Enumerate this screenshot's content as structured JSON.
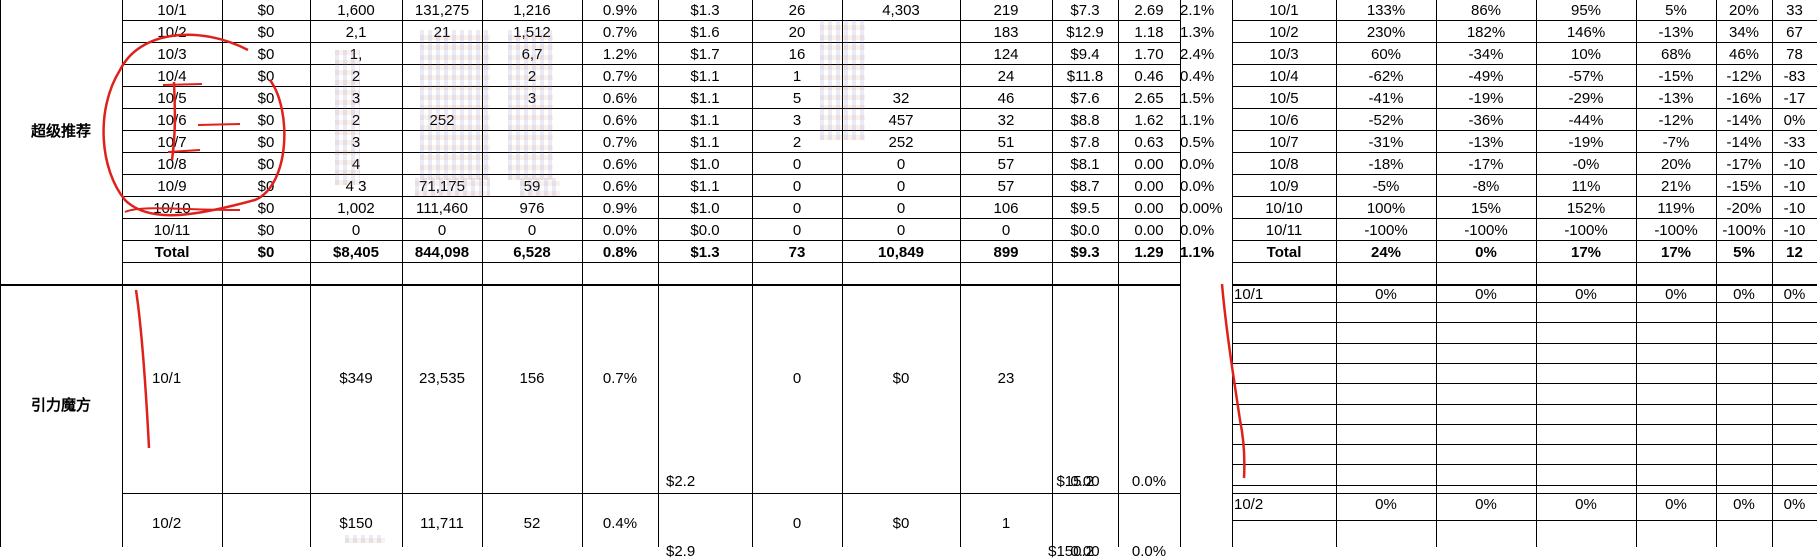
{
  "left_table": {
    "group_a": {
      "label": "超级推荐",
      "rows": [
        [
          "10/1",
          "$0",
          "1,600",
          "131,275",
          "1,216",
          "0.9%",
          "$1.3",
          "26",
          "4,303",
          "219",
          "$7.3",
          "2.69",
          "2.1%"
        ],
        [
          "10/2",
          "$0",
          "2,1",
          "21",
          "1,512",
          "0.7%",
          "$1.6",
          "20",
          "",
          "183",
          "$12.9",
          "1.18",
          "1.3%"
        ],
        [
          "10/3",
          "$0",
          "1,",
          "",
          "6,7",
          "1.2%",
          "$1.7",
          "16",
          "",
          "124",
          "$9.4",
          "1.70",
          "2.4%"
        ],
        [
          "10/4",
          "$0",
          "2",
          "",
          "2",
          "0.7%",
          "$1.1",
          "1",
          "",
          "24",
          "$11.8",
          "0.46",
          "0.4%"
        ],
        [
          "10/5",
          "$0",
          "3",
          "",
          "3",
          "0.6%",
          "$1.1",
          "5",
          "32",
          "46",
          "$7.6",
          "2.65",
          "1.5%"
        ],
        [
          "10/6",
          "$0",
          "2",
          "252",
          "",
          "0.6%",
          "$1.1",
          "3",
          "457",
          "32",
          "$8.8",
          "1.62",
          "1.1%"
        ],
        [
          "10/7",
          "$0",
          "3",
          "",
          "",
          "0.7%",
          "$1.1",
          "2",
          "252",
          "51",
          "$7.8",
          "0.63",
          "0.5%"
        ],
        [
          "10/8",
          "$0",
          "4",
          "",
          "",
          "0.6%",
          "$1.0",
          "0",
          "0",
          "57",
          "$8.1",
          "0.00",
          "0.0%"
        ],
        [
          "10/9",
          "$0",
          "4 3",
          "71,175",
          "59",
          "0.6%",
          "$1.1",
          "0",
          "0",
          "57",
          "$8.7",
          "0.00",
          "0.0%"
        ],
        [
          "10/10",
          "$0",
          "1,002",
          "111,460",
          "976",
          "0.9%",
          "$1.0",
          "0",
          "0",
          "106",
          "$9.5",
          "0.00",
          "0.00%"
        ],
        [
          "10/11",
          "$0",
          "0",
          "0",
          "0",
          "0.0%",
          "$0.0",
          "0",
          "0",
          "0",
          "$0.0",
          "0.00",
          "0.0%"
        ]
      ],
      "total": [
        "Total",
        "$0",
        "$8,405",
        "844,098",
        "6,528",
        "0.8%",
        "$1.3",
        "73",
        "10,849",
        "899",
        "$9.3",
        "1.29",
        "1.1%"
      ]
    },
    "group_b": {
      "label": "引力魔方",
      "row1": {
        "date": "10/1",
        "spend": "$349",
        "imp": "23,535",
        "clicks": "156",
        "ctr": "0.7%",
        "cpc": "$2.2",
        "c7": "0",
        "c8": "$0",
        "c9": "23",
        "c10": "$15.2",
        "c11": "0.00",
        "c12": "0.0%"
      },
      "row2": {
        "date": "10/2",
        "spend": "$150",
        "imp": "11,711",
        "clicks": "52",
        "ctr": "0.4%",
        "cpc": "$2.9",
        "c7": "0",
        "c8": "$0",
        "c9": "1",
        "c10": "$150.2",
        "c11": "0.00",
        "c12": "0.0%"
      }
    }
  },
  "right_table": {
    "rows": [
      [
        "10/1",
        "133%",
        "86%",
        "95%",
        "5%",
        "20%",
        "33"
      ],
      [
        "10/2",
        "230%",
        "182%",
        "146%",
        "-13%",
        "34%",
        "67"
      ],
      [
        "10/3",
        "60%",
        "-34%",
        "10%",
        "68%",
        "46%",
        "78"
      ],
      [
        "10/4",
        "-62%",
        "-49%",
        "-57%",
        "-15%",
        "-12%",
        "-83"
      ],
      [
        "10/5",
        "-41%",
        "-19%",
        "-29%",
        "-13%",
        "-16%",
        "-17"
      ],
      [
        "10/6",
        "-52%",
        "-36%",
        "-44%",
        "-12%",
        "-14%",
        "0%"
      ],
      [
        "10/7",
        "-31%",
        "-13%",
        "-19%",
        "-7%",
        "-14%",
        "-33"
      ],
      [
        "10/8",
        "-18%",
        "-17%",
        "-0%",
        "20%",
        "-17%",
        "-10"
      ],
      [
        "10/9",
        "-5%",
        "-8%",
        "11%",
        "21%",
        "-15%",
        "-10"
      ],
      [
        "10/10",
        "100%",
        "15%",
        "152%",
        "119%",
        "-20%",
        "-10"
      ],
      [
        "10/11",
        "-100%",
        "-100%",
        "-100%",
        "-100%",
        "-100%",
        "-10"
      ]
    ],
    "total": [
      "Total",
      "24%",
      "0%",
      "17%",
      "17%",
      "5%",
      "12"
    ],
    "section2_first": [
      "10/1",
      "0%",
      "0%",
      "0%",
      "0%",
      "0%",
      "0%"
    ],
    "section3_first": [
      "10/2",
      "0%",
      "0%",
      "0%",
      "0%",
      "0%",
      "0%"
    ]
  }
}
